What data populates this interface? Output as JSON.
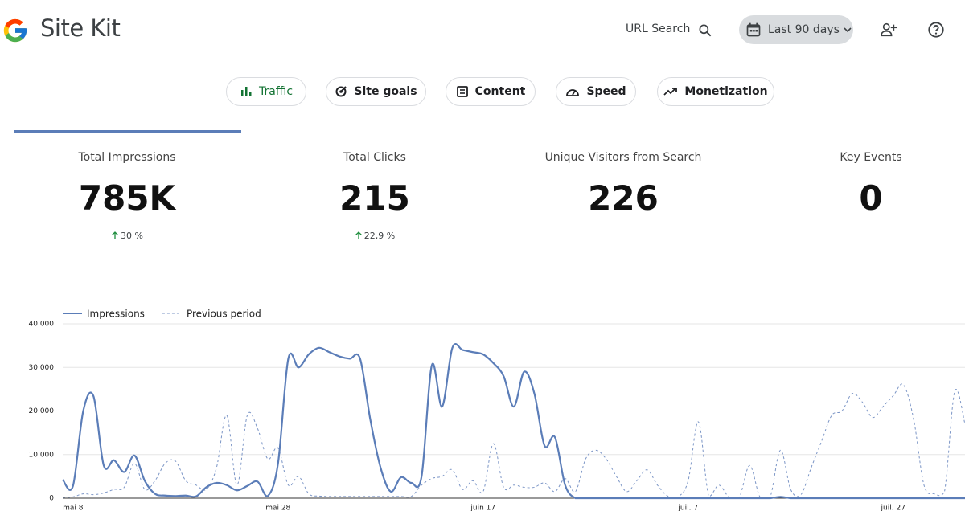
{
  "header": {
    "brand": "Site Kit",
    "search": "URL Search",
    "date_range": "Last 90 days"
  },
  "tabs": [
    "Traffic",
    "Site goals",
    "Content",
    "Speed",
    "Monetization"
  ],
  "metrics": [
    {
      "label": "Total Impressions",
      "value": "785K",
      "change": "30 %"
    },
    {
      "label": "Total Clicks",
      "value": "215",
      "change": "22,9 %"
    },
    {
      "label": "Unique Visitors from Search",
      "value": "226"
    },
    {
      "label": "Key Events",
      "value": "0"
    }
  ],
  "chart_data": {
    "type": "line",
    "categories": [
      null,
      "mai 8",
      null,
      null,
      null,
      null,
      null,
      null,
      null,
      null,
      null,
      null,
      null,
      null,
      null,
      null,
      null,
      null,
      null,
      null,
      null,
      "mai 28",
      null,
      null,
      null,
      null,
      null,
      null,
      null,
      null,
      null,
      null,
      null,
      null,
      null,
      null,
      null,
      null,
      null,
      null,
      null,
      "juin 17",
      null,
      null,
      null,
      null,
      null,
      null,
      null,
      null,
      null,
      null,
      null,
      null,
      null,
      null,
      null,
      null,
      null,
      null,
      null,
      "juil. 7",
      null,
      null,
      null,
      null,
      null,
      null,
      null,
      null,
      null,
      null,
      null,
      null,
      null,
      null,
      null,
      null,
      null,
      null,
      null,
      "juil. 27",
      null,
      null,
      null,
      null,
      null,
      null,
      null
    ],
    "series": [
      {
        "name": "Impressions",
        "color": "#5b7db8",
        "style": "solid",
        "values": [
          4200,
          2800,
          20000,
          23400,
          7500,
          8700,
          6000,
          9800,
          4000,
          1000,
          600,
          500,
          600,
          400,
          2500,
          3500,
          3000,
          1800,
          2800,
          3800,
          500,
          8000,
          32000,
          30000,
          33000,
          34500,
          33500,
          32500,
          32000,
          32000,
          18000,
          7000,
          1500,
          4800,
          3500,
          5000,
          30500,
          21000,
          34500,
          34000,
          33500,
          33000,
          31000,
          28000,
          21000,
          29000,
          24000,
          12000,
          14000,
          3000,
          0,
          0,
          0,
          0,
          0,
          0,
          0,
          0,
          0,
          0,
          0,
          0,
          0,
          0,
          0,
          0,
          0,
          0,
          0,
          0,
          300,
          0,
          0,
          0,
          0,
          0,
          0,
          0,
          0,
          0,
          0,
          0,
          0,
          0,
          0,
          0,
          0,
          0,
          0
        ]
      },
      {
        "name": "Previous period",
        "color": "#7b95c6",
        "style": "dashed",
        "values": [
          200,
          300,
          1000,
          800,
          1200,
          2000,
          2500,
          8000,
          2000,
          4000,
          8000,
          8500,
          4000,
          3000,
          2000,
          7000,
          19000,
          3000,
          19000,
          16000,
          9000,
          11500,
          3000,
          5000,
          1000,
          500,
          400,
          400,
          400,
          400,
          400,
          400,
          400,
          400,
          400,
          3000,
          4500,
          5000,
          6500,
          2000,
          4000,
          1500,
          12500,
          2500,
          3000,
          2500,
          2500,
          3500,
          1500,
          4500,
          1500,
          9000,
          11000,
          9000,
          5000,
          1500,
          4000,
          6500,
          3000,
          500,
          300,
          4000,
          17500,
          500,
          3000,
          200,
          300,
          7500,
          300,
          300,
          11000,
          2000,
          800,
          7000,
          13000,
          19000,
          20000,
          24000,
          22000,
          18500,
          21000,
          23500,
          26000,
          18000,
          3000,
          1000,
          1500,
          24500,
          17000
        ]
      }
    ],
    "ylim": [
      0,
      40000
    ],
    "yticks": [
      0,
      {
        "value": 10000,
        "label": "10 000"
      },
      {
        "value": 20000,
        "label": "20 000"
      },
      {
        "value": 30000,
        "label": "30 000"
      },
      {
        "value": 40000,
        "label": "40 000"
      }
    ],
    "grid": true,
    "legend": "top-left"
  }
}
